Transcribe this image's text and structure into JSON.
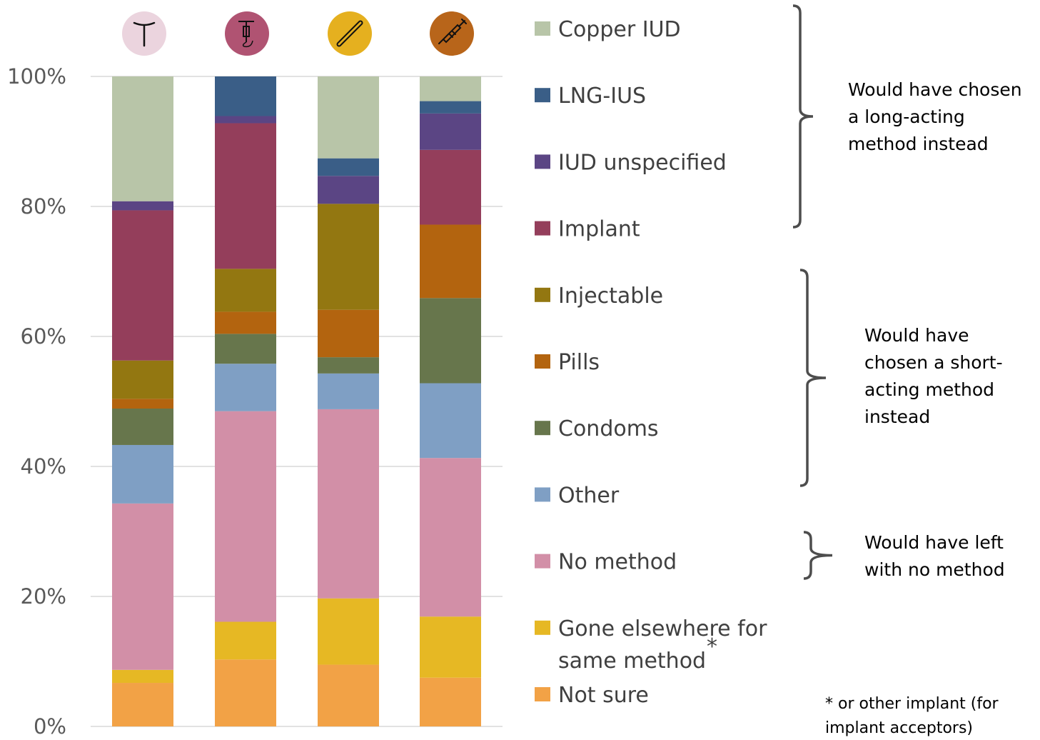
{
  "chart_data": {
    "type": "bar",
    "stacked": true,
    "grid": true,
    "ylim": [
      0,
      100
    ],
    "y_ticks": [
      "0%",
      "20%",
      "40%",
      "60%",
      "80%",
      "100%"
    ],
    "categories": [
      "copper-iud-icon",
      "lng-ius-icon",
      "implant-icon",
      "injectable-icon"
    ],
    "category_colors": [
      "#ebd4de",
      "#b05372",
      "#e5b01f",
      "#b8651a"
    ],
    "series": [
      {
        "name": "Not sure",
        "color": "#f2a246",
        "values": [
          6.7,
          10.3,
          9.5,
          7.5
        ]
      },
      {
        "name": "Gone elsewhere for same method",
        "name_superscript": "*",
        "color": "#e6b824",
        "values": [
          2.0,
          5.8,
          10.2,
          9.4
        ]
      },
      {
        "name": "No method",
        "color": "#d28fa7",
        "values": [
          25.6,
          32.4,
          29.1,
          24.4
        ]
      },
      {
        "name": "Other",
        "color": "#7f9fc4",
        "values": [
          9.0,
          7.3,
          5.5,
          11.5
        ]
      },
      {
        "name": "Condoms",
        "color": "#67764c",
        "values": [
          5.6,
          4.6,
          2.5,
          13.1
        ]
      },
      {
        "name": "Pills",
        "color": "#b3640f",
        "values": [
          1.5,
          3.4,
          7.3,
          11.3
        ]
      },
      {
        "name": "Injectable",
        "color": "#937711",
        "values": [
          5.9,
          6.6,
          16.3,
          0.0
        ]
      },
      {
        "name": "Implant",
        "color": "#943e5b",
        "values": [
          23.1,
          22.4,
          0.0,
          11.5
        ]
      },
      {
        "name": "IUD unspecified",
        "color": "#5b4584",
        "values": [
          1.4,
          1.1,
          4.3,
          5.6
        ]
      },
      {
        "name": "LNG-IUS",
        "color": "#3a5e87",
        "values": [
          0.0,
          6.1,
          2.7,
          1.9
        ]
      },
      {
        "name": "Copper IUD",
        "color": "#b8c5a8",
        "values": [
          19.2,
          0.0,
          12.6,
          3.8
        ]
      }
    ],
    "annotations": [
      {
        "lines": [
          "Would have chosen",
          "a long-acting",
          "method instead"
        ]
      },
      {
        "lines": [
          "Would have",
          "chosen a short-",
          "acting method",
          "instead"
        ]
      },
      {
        "lines": [
          "Would have left",
          "with no method"
        ]
      }
    ],
    "footnote": [
      "* or other implant (for",
      "implant acceptors)"
    ]
  }
}
